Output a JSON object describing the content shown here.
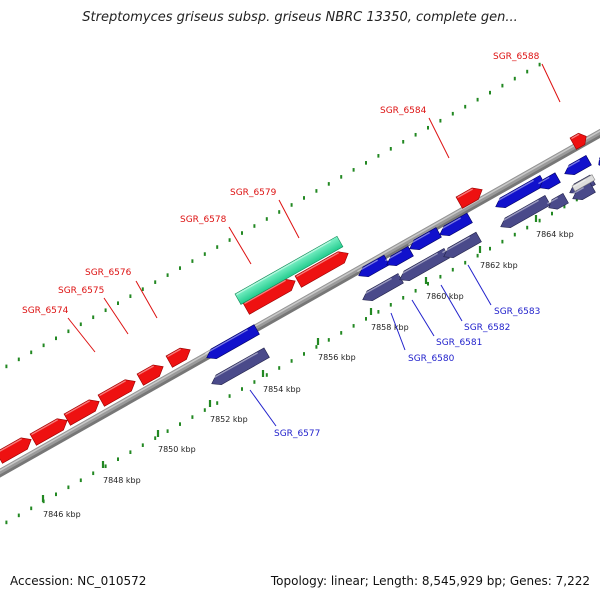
{
  "header": {
    "title": "Streptomyces griseus subsp. griseus NBRC 13350, complete gen..."
  },
  "footer": {
    "accession": "Accession: NC_010572",
    "summary": "Topology: linear; Length: 8,545,929 bp; Genes: 7,222"
  },
  "colors": {
    "forward_gene": "#ee1111",
    "reverse_gene": "#1111cc",
    "reverse_gene_shadow": "#4a4a8a",
    "rna_feature": "#33ddaa",
    "backbone": "#9a9a9a",
    "tick": "#228822",
    "forward_label": "#dd1111",
    "reverse_label": "#2222cc"
  },
  "ticks": [
    {
      "label": "7846 kbp"
    },
    {
      "label": "7848 kbp"
    },
    {
      "label": "7850 kbp"
    },
    {
      "label": "7852 kbp"
    },
    {
      "label": "7854 kbp"
    },
    {
      "label": "7856 kbp"
    },
    {
      "label": "7858 kbp"
    },
    {
      "label": "7860 kbp"
    },
    {
      "label": "7862 kbp"
    },
    {
      "label": "7864 kbp"
    }
  ],
  "forward_labels": [
    {
      "name": "SGR_6574"
    },
    {
      "name": "SGR_6575"
    },
    {
      "name": "SGR_6576"
    },
    {
      "name": "SGR_6578"
    },
    {
      "name": "SGR_6579"
    },
    {
      "name": "SGR_6584"
    },
    {
      "name": "SGR_6588"
    }
  ],
  "reverse_labels": [
    {
      "name": "SGR_6577"
    },
    {
      "name": "SGR_6580"
    },
    {
      "name": "SGR_6581"
    },
    {
      "name": "SGR_6582"
    },
    {
      "name": "SGR_6583"
    }
  ]
}
